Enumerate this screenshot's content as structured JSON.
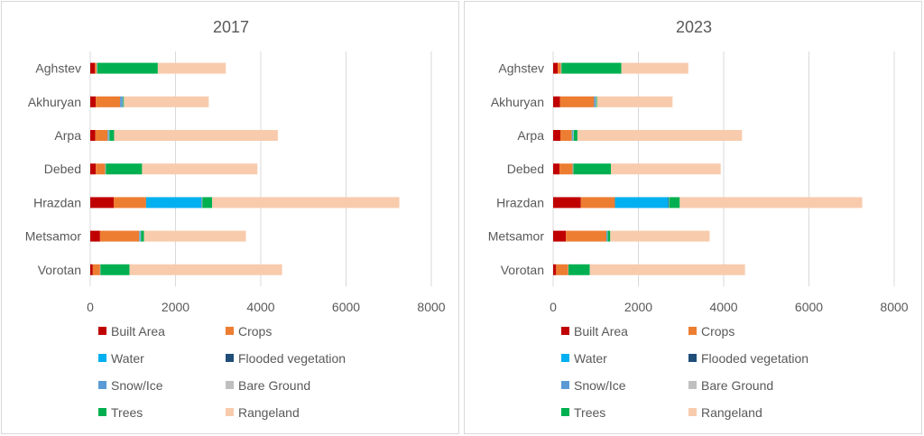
{
  "legend": [
    {
      "name": "Built Area",
      "color": "#c00000"
    },
    {
      "name": "Crops",
      "color": "#ed7d31"
    },
    {
      "name": "Water",
      "color": "#00b0f0"
    },
    {
      "name": "Flooded vegetation",
      "color": "#1f4e79"
    },
    {
      "name": "Snow/Ice",
      "color": "#5b9bd5"
    },
    {
      "name": "Bare Ground",
      "color": "#bfbfbf"
    },
    {
      "name": "Trees",
      "color": "#00b050"
    },
    {
      "name": "Rangeland",
      "color": "#f8cbad"
    }
  ],
  "chart_data": [
    {
      "type": "bar",
      "orientation": "horizontal",
      "stacked": true,
      "title": "2017",
      "categories": [
        "Aghstev",
        "Akhuryan",
        "Arpa",
        "Debed",
        "Hrazdan",
        "Metsamor",
        "Vorotan"
      ],
      "xlim": [
        0,
        8000
      ],
      "xticks": [
        "0",
        "2000",
        "4000",
        "6000",
        "8000"
      ],
      "grid": true,
      "legend_position": "bottom",
      "series": [
        {
          "name": "Built Area",
          "values": [
            110,
            130,
            120,
            130,
            550,
            230,
            60
          ]
        },
        {
          "name": "Crops",
          "values": [
            40,
            570,
            290,
            220,
            760,
            920,
            170
          ]
        },
        {
          "name": "Water",
          "values": [
            0,
            0,
            10,
            5,
            1300,
            10,
            0
          ]
        },
        {
          "name": "Flooded vegetation",
          "values": [
            0,
            0,
            0,
            0,
            10,
            0,
            0
          ]
        },
        {
          "name": "Snow/Ice",
          "values": [
            5,
            60,
            20,
            0,
            0,
            20,
            0
          ]
        },
        {
          "name": "Bare Ground",
          "values": [
            10,
            10,
            10,
            10,
            10,
            10,
            10
          ]
        },
        {
          "name": "Trees",
          "values": [
            1420,
            20,
            110,
            850,
            230,
            70,
            680
          ]
        },
        {
          "name": "Rangeland",
          "values": [
            1595,
            1990,
            3840,
            2705,
            4390,
            2390,
            3580
          ]
        }
      ]
    },
    {
      "type": "bar",
      "orientation": "horizontal",
      "stacked": true,
      "title": "2023",
      "categories": [
        "Aghstev",
        "Akhuryan",
        "Arpa",
        "Debed",
        "Hrazdan",
        "Metsamor",
        "Vorotan"
      ],
      "xlim": [
        0,
        8000
      ],
      "xticks": [
        "0",
        "2000",
        "4000",
        "6000",
        "8000"
      ],
      "grid": true,
      "legend_position": "bottom",
      "series": [
        {
          "name": "Built Area",
          "values": [
            110,
            160,
            170,
            150,
            650,
            300,
            70
          ]
        },
        {
          "name": "Crops",
          "values": [
            70,
            800,
            270,
            310,
            800,
            950,
            280
          ]
        },
        {
          "name": "Water",
          "values": [
            0,
            0,
            10,
            5,
            1250,
            10,
            0
          ]
        },
        {
          "name": "Flooded vegetation",
          "values": [
            0,
            0,
            0,
            0,
            10,
            0,
            0
          ]
        },
        {
          "name": "Snow/Ice",
          "values": [
            5,
            40,
            20,
            0,
            0,
            10,
            0
          ]
        },
        {
          "name": "Bare Ground",
          "values": [
            10,
            10,
            10,
            10,
            10,
            10,
            10
          ]
        },
        {
          "name": "Trees",
          "values": [
            1405,
            20,
            90,
            880,
            250,
            60,
            500
          ]
        },
        {
          "name": "Rangeland",
          "values": [
            1570,
            1770,
            3860,
            2575,
            4280,
            2330,
            3640
          ]
        }
      ]
    }
  ]
}
